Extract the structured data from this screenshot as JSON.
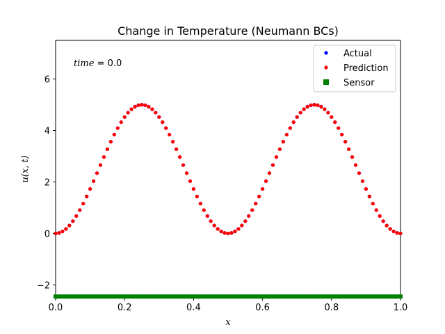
{
  "chart_data": {
    "type": "scatter",
    "title": "Change in Temperature (Neumann BCs)",
    "xlabel": "x",
    "ylabel": "u(x, t)",
    "xlim": [
      0.0,
      1.0
    ],
    "ylim": [
      -2.5,
      7.5
    ],
    "xticks": [
      0.0,
      0.2,
      0.4,
      0.6,
      0.8,
      1.0
    ],
    "xtick_labels": [
      "0.0",
      "0.2",
      "0.4",
      "0.6",
      "0.8",
      "1.0"
    ],
    "yticks": [
      -2,
      0,
      2,
      4,
      6
    ],
    "ytick_labels": [
      "−2",
      "0",
      "2",
      "4",
      "6"
    ],
    "grid": false,
    "legend_position": "top-right",
    "annotation": {
      "var": "time",
      "eq": " = 0.0"
    },
    "function_note": "u(x) = 2.5*(1 - cos(4*pi*x)), sampled at 101 points, x from 0 to 1",
    "sample_count": 101,
    "amplitude": 2.5,
    "frequency": 4,
    "sensor_y": -2.45,
    "sensor_count": 101,
    "series": [
      {
        "name": "Actual",
        "color": "#0000ff",
        "marker": "circle"
      },
      {
        "name": "Prediction",
        "color": "#ff0000",
        "marker": "circle"
      },
      {
        "name": "Sensor",
        "color": "#008000",
        "marker": "square"
      }
    ]
  }
}
